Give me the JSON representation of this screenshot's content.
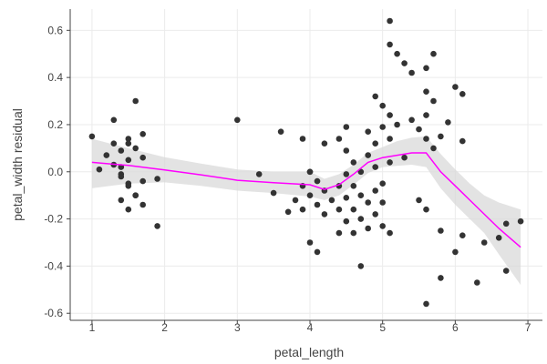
{
  "chart_data": {
    "type": "scatter",
    "title": "",
    "xlabel": "petal_length",
    "ylabel": "petal_width residual",
    "xlim": [
      0.7,
      7.2
    ],
    "ylim": [
      -0.63,
      0.69
    ],
    "x_ticks": [
      1,
      2,
      3,
      4,
      5,
      6,
      7
    ],
    "y_ticks": [
      -0.6,
      -0.4,
      -0.2,
      0.0,
      0.2,
      0.4,
      0.6
    ],
    "x_tick_labels": [
      "1",
      "2",
      "3",
      "4",
      "5",
      "6",
      "7"
    ],
    "y_tick_labels": [
      "-0.6",
      "-0.4",
      "-0.2",
      "0.0",
      "0.2",
      "0.4",
      "0.6"
    ],
    "grid": true,
    "points": [
      [
        1.0,
        0.15
      ],
      [
        1.1,
        0.01
      ],
      [
        1.2,
        0.07
      ],
      [
        1.3,
        0.22
      ],
      [
        1.3,
        0.12
      ],
      [
        1.3,
        0.03
      ],
      [
        1.4,
        0.09
      ],
      [
        1.4,
        0.02
      ],
      [
        1.4,
        -0.01
      ],
      [
        1.4,
        -0.02
      ],
      [
        1.4,
        -0.12
      ],
      [
        1.5,
        0.14
      ],
      [
        1.5,
        0.12
      ],
      [
        1.5,
        0.05
      ],
      [
        1.5,
        -0.05
      ],
      [
        1.5,
        -0.06
      ],
      [
        1.5,
        -0.16
      ],
      [
        1.6,
        0.3
      ],
      [
        1.6,
        0.1
      ],
      [
        1.6,
        -0.1
      ],
      [
        1.6,
        -0.1
      ],
      [
        1.7,
        0.16
      ],
      [
        1.7,
        0.06
      ],
      [
        1.7,
        -0.04
      ],
      [
        1.7,
        -0.14
      ],
      [
        1.9,
        -0.03
      ],
      [
        1.9,
        -0.23
      ],
      [
        3.0,
        0.22
      ],
      [
        3.3,
        -0.01
      ],
      [
        3.5,
        -0.09
      ],
      [
        3.6,
        0.17
      ],
      [
        3.7,
        -0.17
      ],
      [
        3.8,
        -0.12
      ],
      [
        3.9,
        0.14
      ],
      [
        3.9,
        -0.06
      ],
      [
        3.9,
        -0.16
      ],
      [
        4.0,
        0.0
      ],
      [
        4.0,
        0.0
      ],
      [
        4.0,
        -0.1
      ],
      [
        4.0,
        -0.3
      ],
      [
        4.1,
        -0.04
      ],
      [
        4.1,
        -0.14
      ],
      [
        4.1,
        -0.34
      ],
      [
        4.2,
        0.12
      ],
      [
        4.2,
        -0.08
      ],
      [
        4.2,
        -0.18
      ],
      [
        4.3,
        -0.12
      ],
      [
        4.4,
        0.14
      ],
      [
        4.4,
        -0.06
      ],
      [
        4.4,
        -0.16
      ],
      [
        4.4,
        -0.26
      ],
      [
        4.5,
        0.19
      ],
      [
        4.5,
        0.09
      ],
      [
        4.5,
        -0.01
      ],
      [
        4.5,
        -0.11
      ],
      [
        4.5,
        -0.21
      ],
      [
        4.6,
        0.04
      ],
      [
        4.6,
        -0.06
      ],
      [
        4.6,
        -0.16
      ],
      [
        4.6,
        -0.26
      ],
      [
        4.7,
        0.0
      ],
      [
        4.7,
        -0.1
      ],
      [
        4.7,
        -0.2
      ],
      [
        4.7,
        -0.4
      ],
      [
        4.8,
        0.17
      ],
      [
        4.8,
        0.07
      ],
      [
        4.8,
        -0.13
      ],
      [
        4.8,
        -0.24
      ],
      [
        4.9,
        0.32
      ],
      [
        4.9,
        0.12
      ],
      [
        4.9,
        0.02
      ],
      [
        4.9,
        -0.08
      ],
      [
        4.9,
        -0.18
      ],
      [
        5.0,
        0.28
      ],
      [
        5.0,
        0.19
      ],
      [
        5.0,
        -0.05
      ],
      [
        5.0,
        -0.13
      ],
      [
        5.0,
        -0.23
      ],
      [
        5.1,
        0.64
      ],
      [
        5.1,
        0.54
      ],
      [
        5.1,
        0.24
      ],
      [
        5.1,
        0.14
      ],
      [
        5.1,
        0.04
      ],
      [
        5.1,
        -0.26
      ],
      [
        5.2,
        0.5
      ],
      [
        5.2,
        0.2
      ],
      [
        5.3,
        0.46
      ],
      [
        5.3,
        0.06
      ],
      [
        5.4,
        0.42
      ],
      [
        5.4,
        0.22
      ],
      [
        5.5,
        0.18
      ],
      [
        5.5,
        -0.12
      ],
      [
        5.6,
        0.44
      ],
      [
        5.6,
        0.34
      ],
      [
        5.6,
        0.24
      ],
      [
        5.6,
        0.14
      ],
      [
        5.6,
        -0.16
      ],
      [
        5.6,
        -0.56
      ],
      [
        5.7,
        0.5
      ],
      [
        5.7,
        0.3
      ],
      [
        5.7,
        0.1
      ],
      [
        5.8,
        0.15
      ],
      [
        5.8,
        -0.25
      ],
      [
        5.8,
        -0.45
      ],
      [
        5.9,
        0.21
      ],
      [
        6.0,
        0.36
      ],
      [
        6.0,
        -0.34
      ],
      [
        6.1,
        0.33
      ],
      [
        6.1,
        0.13
      ],
      [
        6.1,
        -0.27
      ],
      [
        6.3,
        -0.47
      ],
      [
        6.4,
        -0.3
      ],
      [
        6.6,
        -0.28
      ],
      [
        6.7,
        -0.22
      ],
      [
        6.7,
        -0.42
      ],
      [
        6.9,
        -0.21
      ]
    ],
    "smooth_line": {
      "color": "#ff00ff",
      "x": [
        1.0,
        1.5,
        2.0,
        2.5,
        3.0,
        3.5,
        4.0,
        4.2,
        4.4,
        4.6,
        4.8,
        5.0,
        5.2,
        5.4,
        5.6,
        5.8,
        6.0,
        6.2,
        6.4,
        6.6,
        6.9
      ],
      "y": [
        0.04,
        0.027,
        0.008,
        -0.013,
        -0.036,
        -0.046,
        -0.055,
        -0.075,
        -0.055,
        -0.01,
        0.04,
        0.06,
        0.07,
        0.08,
        0.08,
        0.0,
        -0.06,
        -0.12,
        -0.18,
        -0.24,
        -0.32
      ]
    },
    "confidence_band": {
      "color": "#d9d9d9",
      "x": [
        1.0,
        1.5,
        2.0,
        2.5,
        3.0,
        3.5,
        4.0,
        4.2,
        4.4,
        4.6,
        4.8,
        5.0,
        5.2,
        5.4,
        5.6,
        5.8,
        6.0,
        6.2,
        6.4,
        6.6,
        6.9
      ],
      "upper": [
        0.14,
        0.1,
        0.062,
        0.035,
        0.01,
        0.0,
        0.0,
        -0.03,
        -0.01,
        0.03,
        0.08,
        0.105,
        0.13,
        0.145,
        0.15,
        0.075,
        0.01,
        -0.05,
        -0.1,
        -0.13,
        -0.16
      ],
      "lower": [
        -0.07,
        -0.05,
        -0.045,
        -0.06,
        -0.08,
        -0.09,
        -0.105,
        -0.12,
        -0.1,
        -0.055,
        -0.005,
        0.02,
        0.025,
        0.03,
        0.02,
        -0.07,
        -0.14,
        -0.2,
        -0.26,
        -0.35,
        -0.48
      ]
    },
    "point_color": "#333333"
  }
}
